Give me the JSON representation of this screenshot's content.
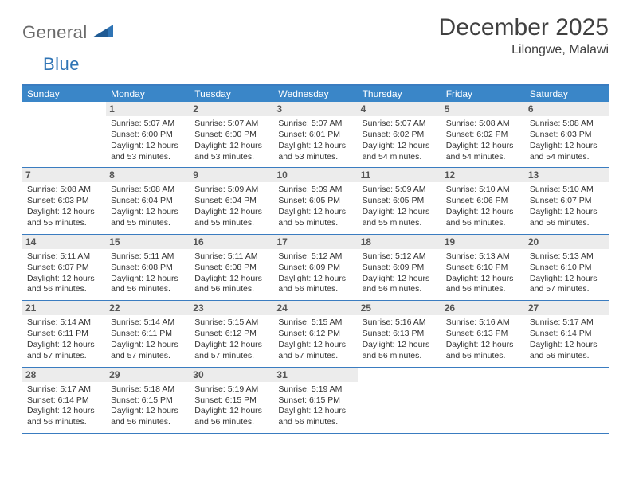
{
  "brand": {
    "word1": "General",
    "word2": "Blue"
  },
  "header": {
    "month_title": "December 2025",
    "location": "Lilongwe, Malawi"
  },
  "dow": [
    "Sunday",
    "Monday",
    "Tuesday",
    "Wednesday",
    "Thursday",
    "Friday",
    "Saturday"
  ],
  "colors": {
    "header_bar": "#3a86c8",
    "rule": "#3a7cc0",
    "daynum_bg": "#ececec",
    "logo_gray": "#6a6a6a",
    "logo_blue": "#2f74b5"
  },
  "weeks": [
    [
      {
        "n": "",
        "sr": "",
        "ss": "",
        "dl": ""
      },
      {
        "n": "1",
        "sr": "Sunrise: 5:07 AM",
        "ss": "Sunset: 6:00 PM",
        "dl": "Daylight: 12 hours and 53 minutes."
      },
      {
        "n": "2",
        "sr": "Sunrise: 5:07 AM",
        "ss": "Sunset: 6:00 PM",
        "dl": "Daylight: 12 hours and 53 minutes."
      },
      {
        "n": "3",
        "sr": "Sunrise: 5:07 AM",
        "ss": "Sunset: 6:01 PM",
        "dl": "Daylight: 12 hours and 53 minutes."
      },
      {
        "n": "4",
        "sr": "Sunrise: 5:07 AM",
        "ss": "Sunset: 6:02 PM",
        "dl": "Daylight: 12 hours and 54 minutes."
      },
      {
        "n": "5",
        "sr": "Sunrise: 5:08 AM",
        "ss": "Sunset: 6:02 PM",
        "dl": "Daylight: 12 hours and 54 minutes."
      },
      {
        "n": "6",
        "sr": "Sunrise: 5:08 AM",
        "ss": "Sunset: 6:03 PM",
        "dl": "Daylight: 12 hours and 54 minutes."
      }
    ],
    [
      {
        "n": "7",
        "sr": "Sunrise: 5:08 AM",
        "ss": "Sunset: 6:03 PM",
        "dl": "Daylight: 12 hours and 55 minutes."
      },
      {
        "n": "8",
        "sr": "Sunrise: 5:08 AM",
        "ss": "Sunset: 6:04 PM",
        "dl": "Daylight: 12 hours and 55 minutes."
      },
      {
        "n": "9",
        "sr": "Sunrise: 5:09 AM",
        "ss": "Sunset: 6:04 PM",
        "dl": "Daylight: 12 hours and 55 minutes."
      },
      {
        "n": "10",
        "sr": "Sunrise: 5:09 AM",
        "ss": "Sunset: 6:05 PM",
        "dl": "Daylight: 12 hours and 55 minutes."
      },
      {
        "n": "11",
        "sr": "Sunrise: 5:09 AM",
        "ss": "Sunset: 6:05 PM",
        "dl": "Daylight: 12 hours and 55 minutes."
      },
      {
        "n": "12",
        "sr": "Sunrise: 5:10 AM",
        "ss": "Sunset: 6:06 PM",
        "dl": "Daylight: 12 hours and 56 minutes."
      },
      {
        "n": "13",
        "sr": "Sunrise: 5:10 AM",
        "ss": "Sunset: 6:07 PM",
        "dl": "Daylight: 12 hours and 56 minutes."
      }
    ],
    [
      {
        "n": "14",
        "sr": "Sunrise: 5:11 AM",
        "ss": "Sunset: 6:07 PM",
        "dl": "Daylight: 12 hours and 56 minutes."
      },
      {
        "n": "15",
        "sr": "Sunrise: 5:11 AM",
        "ss": "Sunset: 6:08 PM",
        "dl": "Daylight: 12 hours and 56 minutes."
      },
      {
        "n": "16",
        "sr": "Sunrise: 5:11 AM",
        "ss": "Sunset: 6:08 PM",
        "dl": "Daylight: 12 hours and 56 minutes."
      },
      {
        "n": "17",
        "sr": "Sunrise: 5:12 AM",
        "ss": "Sunset: 6:09 PM",
        "dl": "Daylight: 12 hours and 56 minutes."
      },
      {
        "n": "18",
        "sr": "Sunrise: 5:12 AM",
        "ss": "Sunset: 6:09 PM",
        "dl": "Daylight: 12 hours and 56 minutes."
      },
      {
        "n": "19",
        "sr": "Sunrise: 5:13 AM",
        "ss": "Sunset: 6:10 PM",
        "dl": "Daylight: 12 hours and 56 minutes."
      },
      {
        "n": "20",
        "sr": "Sunrise: 5:13 AM",
        "ss": "Sunset: 6:10 PM",
        "dl": "Daylight: 12 hours and 57 minutes."
      }
    ],
    [
      {
        "n": "21",
        "sr": "Sunrise: 5:14 AM",
        "ss": "Sunset: 6:11 PM",
        "dl": "Daylight: 12 hours and 57 minutes."
      },
      {
        "n": "22",
        "sr": "Sunrise: 5:14 AM",
        "ss": "Sunset: 6:11 PM",
        "dl": "Daylight: 12 hours and 57 minutes."
      },
      {
        "n": "23",
        "sr": "Sunrise: 5:15 AM",
        "ss": "Sunset: 6:12 PM",
        "dl": "Daylight: 12 hours and 57 minutes."
      },
      {
        "n": "24",
        "sr": "Sunrise: 5:15 AM",
        "ss": "Sunset: 6:12 PM",
        "dl": "Daylight: 12 hours and 57 minutes."
      },
      {
        "n": "25",
        "sr": "Sunrise: 5:16 AM",
        "ss": "Sunset: 6:13 PM",
        "dl": "Daylight: 12 hours and 56 minutes."
      },
      {
        "n": "26",
        "sr": "Sunrise: 5:16 AM",
        "ss": "Sunset: 6:13 PM",
        "dl": "Daylight: 12 hours and 56 minutes."
      },
      {
        "n": "27",
        "sr": "Sunrise: 5:17 AM",
        "ss": "Sunset: 6:14 PM",
        "dl": "Daylight: 12 hours and 56 minutes."
      }
    ],
    [
      {
        "n": "28",
        "sr": "Sunrise: 5:17 AM",
        "ss": "Sunset: 6:14 PM",
        "dl": "Daylight: 12 hours and 56 minutes."
      },
      {
        "n": "29",
        "sr": "Sunrise: 5:18 AM",
        "ss": "Sunset: 6:15 PM",
        "dl": "Daylight: 12 hours and 56 minutes."
      },
      {
        "n": "30",
        "sr": "Sunrise: 5:19 AM",
        "ss": "Sunset: 6:15 PM",
        "dl": "Daylight: 12 hours and 56 minutes."
      },
      {
        "n": "31",
        "sr": "Sunrise: 5:19 AM",
        "ss": "Sunset: 6:15 PM",
        "dl": "Daylight: 12 hours and 56 minutes."
      },
      {
        "n": "",
        "sr": "",
        "ss": "",
        "dl": ""
      },
      {
        "n": "",
        "sr": "",
        "ss": "",
        "dl": ""
      },
      {
        "n": "",
        "sr": "",
        "ss": "",
        "dl": ""
      }
    ]
  ]
}
